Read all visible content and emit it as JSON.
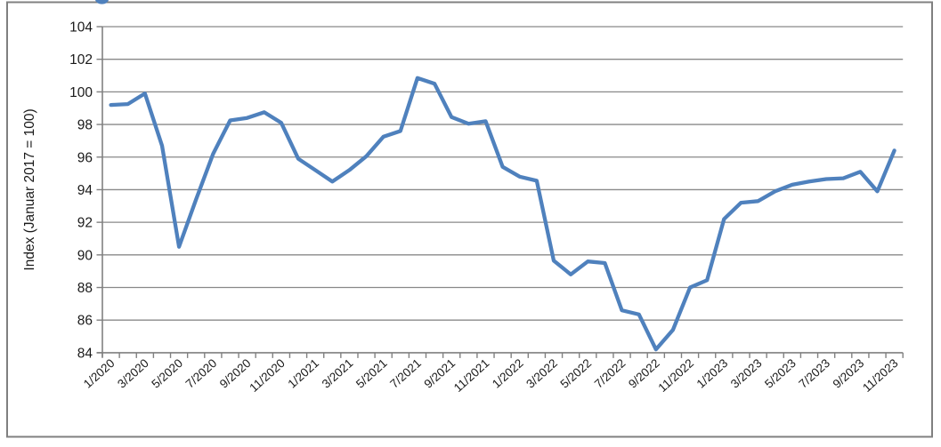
{
  "figure": {
    "background": "#ffffff",
    "border_color": "#808080",
    "cutoff_title_fragment": {
      "description": "bottom of a blue chart title cut off at top edge",
      "color": "#4f81bd"
    }
  },
  "style": {
    "line_color": "#4f81bd",
    "gridline_color": "#898989",
    "axis_color": "#808080",
    "text_color": "#1a1a1a",
    "line_width": 4.3
  },
  "chart_data": {
    "type": "line",
    "title": "",
    "xlabel": "",
    "ylabel": "Index (Januar 2017 = 100)",
    "ylim": [
      84,
      104
    ],
    "ytick_step": 2,
    "yticks": [
      104,
      102,
      100,
      98,
      96,
      94,
      92,
      90,
      88,
      86,
      84
    ],
    "grid": "horizontal",
    "legend": "none",
    "x": [
      "1/2020",
      "2/2020",
      "3/2020",
      "4/2020",
      "5/2020",
      "6/2020",
      "7/2020",
      "8/2020",
      "9/2020",
      "10/2020",
      "11/2020",
      "12/2020",
      "1/2021",
      "2/2021",
      "3/2021",
      "4/2021",
      "5/2021",
      "6/2021",
      "7/2021",
      "8/2021",
      "9/2021",
      "10/2021",
      "11/2021",
      "12/2021",
      "1/2022",
      "2/2022",
      "3/2022",
      "4/2022",
      "5/2022",
      "6/2022",
      "7/2022",
      "8/2022",
      "9/2022",
      "10/2022",
      "11/2022",
      "12/2022",
      "1/2023",
      "2/2023",
      "3/2023",
      "4/2023",
      "5/2023",
      "6/2023",
      "7/2023",
      "8/2023",
      "9/2023",
      "10/2023",
      "11/2023"
    ],
    "xtick_labels": [
      "1/2020",
      "3/2020",
      "5/2020",
      "7/2020",
      "9/2020",
      "11/2020",
      "1/2021",
      "3/2021",
      "5/2021",
      "7/2021",
      "9/2021",
      "11/2021",
      "1/2022",
      "3/2022",
      "5/2022",
      "7/2022",
      "9/2022",
      "11/2022",
      "1/2023",
      "3/2023",
      "5/2023",
      "7/2023",
      "9/2023",
      "11/2023"
    ],
    "series": [
      {
        "name": "Index",
        "color": "#4f81bd",
        "values": [
          99.2,
          99.25,
          99.9,
          96.7,
          90.5,
          93.4,
          96.2,
          98.25,
          98.4,
          98.75,
          98.1,
          95.9,
          95.2,
          94.5,
          95.2,
          96.05,
          97.25,
          97.6,
          100.85,
          100.5,
          98.45,
          98.05,
          98.2,
          95.4,
          94.8,
          94.55,
          89.65,
          88.8,
          89.6,
          89.5,
          86.6,
          86.35,
          84.2,
          85.4,
          88.0,
          88.45,
          92.2,
          93.2,
          93.3,
          93.9,
          94.3,
          94.5,
          94.65,
          94.7,
          95.1,
          93.9,
          96.4
        ]
      }
    ]
  }
}
